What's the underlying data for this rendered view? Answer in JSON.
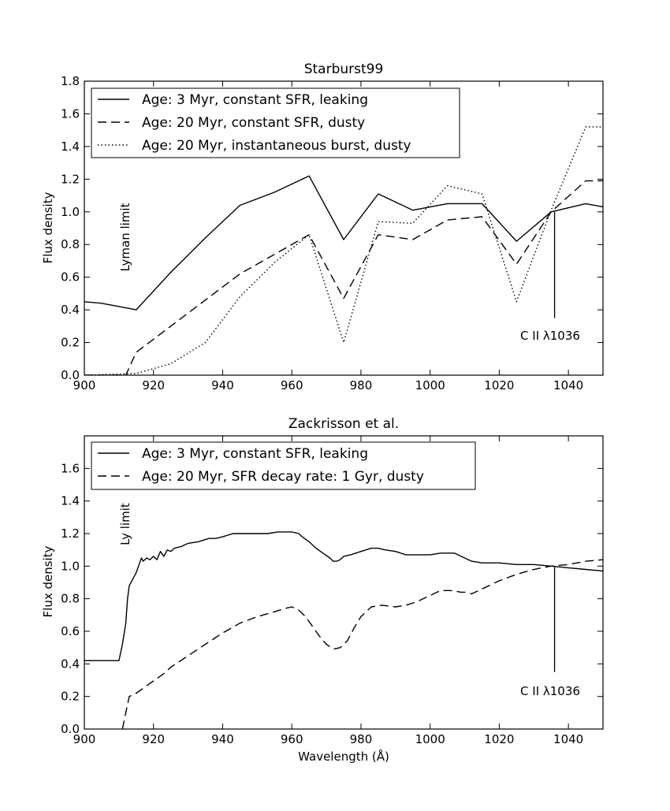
{
  "chart_data": [
    {
      "type": "line",
      "title": "Starburst99",
      "xlabel": "",
      "ylabel": "Flux density",
      "xlim": [
        900,
        1050
      ],
      "ylim": [
        0,
        1.8
      ],
      "xticks": [
        "900",
        "920",
        "940",
        "960",
        "980",
        "1000",
        "1020",
        "1040"
      ],
      "yticks": [
        "0.0",
        "0.2",
        "0.4",
        "0.6",
        "0.8",
        "1.0",
        "1.2",
        "1.4",
        "1.6",
        "1.8"
      ],
      "legend_position": "top-left",
      "series": [
        {
          "name": "Age: 3 Myr, constant SFR, leaking",
          "style": "solid",
          "x": [
            900,
            905,
            915,
            925,
            935,
            945,
            955,
            965,
            975,
            985,
            995,
            1005,
            1015,
            1025,
            1035,
            1045,
            1050
          ],
          "y": [
            0.45,
            0.44,
            0.4,
            0.63,
            0.84,
            1.04,
            1.12,
            1.22,
            0.83,
            1.11,
            1.01,
            1.05,
            1.05,
            0.82,
            1.0,
            1.05,
            1.03
          ]
        },
        {
          "name": "Age: 20 Myr, constant SFR, dusty",
          "style": "dashed",
          "x": [
            900,
            912,
            915,
            925,
            935,
            945,
            955,
            965,
            975,
            985,
            995,
            1005,
            1015,
            1025,
            1035,
            1045,
            1050
          ],
          "y": [
            0.0,
            0.0,
            0.14,
            0.3,
            0.46,
            0.62,
            0.74,
            0.86,
            0.47,
            0.86,
            0.83,
            0.95,
            0.97,
            0.68,
            1.0,
            1.19,
            1.19
          ]
        },
        {
          "name": "Age: 20 Myr, instantaneous burst, dusty",
          "style": "dotted",
          "x": [
            900,
            915,
            925,
            935,
            945,
            955,
            965,
            975,
            985,
            995,
            1005,
            1015,
            1025,
            1035,
            1045,
            1050
          ],
          "y": [
            0.0,
            0.01,
            0.07,
            0.2,
            0.48,
            0.69,
            0.86,
            0.2,
            0.94,
            0.93,
            1.16,
            1.11,
            0.45,
            1.01,
            1.52,
            1.52
          ]
        }
      ],
      "annotations": {
        "limit_label": "Lyman limit",
        "line_label": "C II λ1036",
        "line_x": 1036,
        "line_y": [
          0.35,
          1.0
        ]
      }
    },
    {
      "type": "line",
      "title": "Zackrisson et al.",
      "xlabel": "Wavelength (Å)",
      "ylabel": "Flux density",
      "xlim": [
        900,
        1050
      ],
      "ylim": [
        0,
        1.8
      ],
      "xticks": [
        "900",
        "920",
        "940",
        "960",
        "980",
        "1000",
        "1020",
        "1040"
      ],
      "yticks": [
        "0.0",
        "0.2",
        "0.4",
        "0.6",
        "0.8",
        "1.0",
        "1.2",
        "1.4",
        "1.6"
      ],
      "legend_position": "top-left",
      "series": [
        {
          "name": "Age: 3 Myr, constant SFR, leaking",
          "style": "solid",
          "x": [
            900,
            910,
            911,
            912,
            912.5,
            913,
            914,
            915,
            916,
            916.5,
            917,
            918,
            919,
            920,
            921,
            922,
            923,
            924,
            925,
            926,
            928,
            930,
            933,
            936,
            938,
            940,
            943,
            946,
            950,
            953,
            956,
            958,
            960,
            962,
            963,
            965,
            967,
            969,
            971,
            972,
            973,
            974,
            975,
            977,
            980,
            983,
            985,
            987,
            990,
            993,
            996,
            1000,
            1003,
            1005,
            1007,
            1009,
            1012,
            1015,
            1020,
            1025,
            1030,
            1035,
            1040,
            1045,
            1050
          ],
          "y": [
            0.42,
            0.42,
            0.52,
            0.65,
            0.8,
            0.88,
            0.92,
            0.96,
            1.02,
            1.05,
            1.03,
            1.05,
            1.04,
            1.06,
            1.04,
            1.09,
            1.06,
            1.1,
            1.09,
            1.11,
            1.12,
            1.14,
            1.15,
            1.17,
            1.17,
            1.18,
            1.2,
            1.2,
            1.2,
            1.2,
            1.21,
            1.21,
            1.21,
            1.2,
            1.18,
            1.15,
            1.11,
            1.08,
            1.05,
            1.03,
            1.03,
            1.04,
            1.06,
            1.07,
            1.09,
            1.11,
            1.11,
            1.1,
            1.09,
            1.07,
            1.07,
            1.07,
            1.08,
            1.08,
            1.08,
            1.06,
            1.03,
            1.02,
            1.02,
            1.01,
            1.01,
            1.0,
            0.99,
            0.98,
            0.97
          ]
        },
        {
          "name": "Age: 20 Myr, SFR decay rate: 1 Gyr, dusty",
          "style": "dashed",
          "x": [
            911,
            912,
            913,
            915,
            917,
            919,
            921,
            923,
            925,
            930,
            935,
            940,
            945,
            950,
            955,
            958,
            960,
            962,
            964,
            966,
            968,
            970,
            972,
            974,
            976,
            978,
            980,
            983,
            986,
            990,
            993,
            996,
            1000,
            1003,
            1006,
            1009,
            1010,
            1012,
            1015,
            1020,
            1025,
            1030,
            1035,
            1040,
            1045,
            1050
          ],
          "y": [
            0.0,
            0.1,
            0.2,
            0.22,
            0.25,
            0.28,
            0.31,
            0.34,
            0.38,
            0.45,
            0.52,
            0.59,
            0.65,
            0.69,
            0.72,
            0.74,
            0.75,
            0.73,
            0.69,
            0.63,
            0.57,
            0.52,
            0.49,
            0.5,
            0.54,
            0.62,
            0.69,
            0.75,
            0.76,
            0.75,
            0.76,
            0.78,
            0.82,
            0.85,
            0.85,
            0.84,
            0.84,
            0.83,
            0.86,
            0.91,
            0.95,
            0.98,
            1.0,
            1.01,
            1.03,
            1.04
          ]
        }
      ],
      "annotations": {
        "limit_label": "Ly limit",
        "line_label": "C II λ1036",
        "line_x": 1036,
        "line_y": [
          0.35,
          1.0
        ]
      }
    }
  ]
}
